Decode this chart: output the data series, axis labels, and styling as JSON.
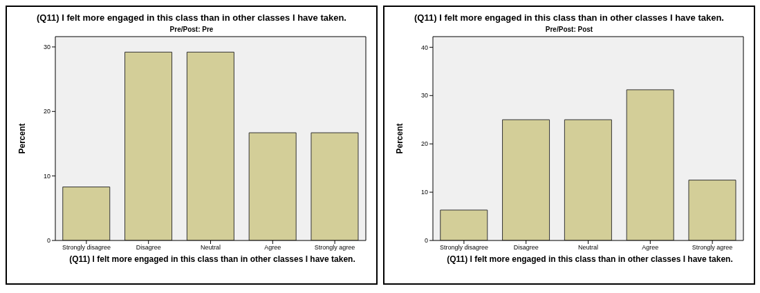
{
  "chart_data": [
    {
      "type": "bar",
      "title": "(Q11) I felt more engaged in this class than in other classes I have taken.",
      "subtitle": "Pre/Post: Pre",
      "xlabel": "(Q11) I felt more engaged in this class than in other classes I have taken.",
      "ylabel": "Percent",
      "categories": [
        "Strongly disagree",
        "Disagree",
        "Neutral",
        "Agree",
        "Strongly agree"
      ],
      "values": [
        8.3,
        29.2,
        29.2,
        16.7,
        16.7
      ],
      "color": "#d3ce98",
      "ylim": [
        0,
        31.6
      ],
      "yticks": [
        0,
        10,
        20,
        30
      ],
      "grid": false,
      "legend": false
    },
    {
      "type": "bar",
      "title": "(Q11) I felt more engaged in this class than in other classes I have taken.",
      "subtitle": "Pre/Post: Post",
      "xlabel": "(Q11) I felt more engaged in this class than in other classes I have taken.",
      "ylabel": "Percent",
      "categories": [
        "Strongly disagree",
        "Disagree",
        "Neutral",
        "Agree",
        "Strongly agree"
      ],
      "values": [
        6.3,
        25,
        25,
        31.2,
        12.5
      ],
      "color": "#d3ce98",
      "ylim": [
        0,
        42.2
      ],
      "yticks": [
        0,
        10,
        20,
        30,
        40
      ],
      "grid": false,
      "legend": false
    }
  ]
}
